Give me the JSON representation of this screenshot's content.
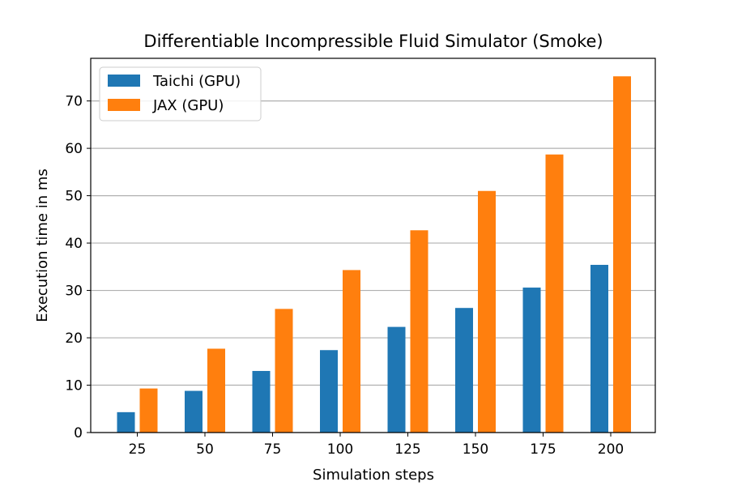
{
  "chart_data": {
    "type": "bar",
    "title": "Differentiable Incompressible Fluid Simulator (Smoke)",
    "xlabel": "Simulation steps",
    "ylabel": "Execution time in ms",
    "categories": [
      "25",
      "50",
      "75",
      "100",
      "125",
      "150",
      "175",
      "200"
    ],
    "series": [
      {
        "name": "Taichi (GPU)",
        "color": "#1f77b4",
        "values": [
          4.3,
          8.8,
          13.0,
          17.4,
          22.3,
          26.3,
          30.6,
          35.4
        ]
      },
      {
        "name": "JAX (GPU)",
        "color": "#ff7f0e",
        "values": [
          9.3,
          17.7,
          26.1,
          34.3,
          42.7,
          51.0,
          58.7,
          75.2
        ]
      }
    ],
    "ylim": [
      0,
      79
    ],
    "yticks": [
      0,
      10,
      20,
      30,
      40,
      50,
      60,
      70
    ],
    "grid": "y",
    "legend": "top-left"
  }
}
